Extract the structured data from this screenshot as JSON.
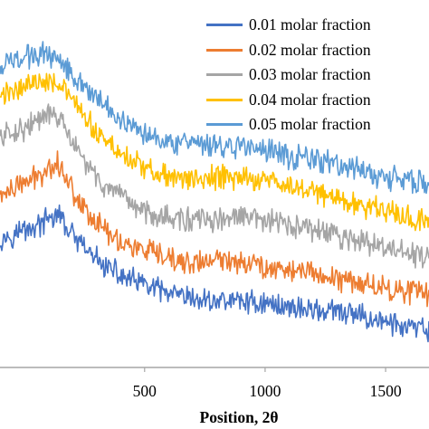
{
  "chart_data": {
    "type": "line",
    "title": "",
    "xlabel": "Position, 2θ",
    "ylabel": "",
    "xlim": [
      -100,
      1680
    ],
    "ylim": [
      0,
      10
    ],
    "xticks": [
      500,
      1000,
      1500
    ],
    "grid": false,
    "legend_position": "top-right",
    "series": [
      {
        "name": "0.01 molar fraction",
        "color": "#4472C4",
        "x": [
          -100,
          0,
          50,
          100,
          140,
          200,
          260,
          320,
          400,
          500,
          600,
          700,
          800,
          900,
          1000,
          1100,
          1200,
          1300,
          1400,
          1500,
          1600,
          1680
        ],
        "y": [
          4.0,
          4.3,
          4.4,
          4.6,
          4.8,
          4.1,
          3.6,
          3.2,
          2.8,
          2.5,
          2.2,
          2.0,
          2.0,
          2.0,
          1.9,
          1.8,
          1.7,
          1.6,
          1.5,
          1.3,
          1.1,
          1.0
        ]
      },
      {
        "name": "0.02 molar fraction",
        "color": "#ED7D31",
        "x": [
          -100,
          0,
          50,
          100,
          140,
          200,
          260,
          320,
          400,
          500,
          600,
          700,
          800,
          900,
          1000,
          1100,
          1200,
          1300,
          1400,
          1500,
          1600,
          1680
        ],
        "y": [
          5.4,
          5.8,
          6.0,
          6.3,
          6.5,
          5.6,
          4.9,
          4.4,
          3.9,
          3.6,
          3.3,
          3.2,
          3.3,
          3.3,
          3.1,
          3.0,
          2.9,
          2.7,
          2.6,
          2.4,
          2.3,
          2.2
        ]
      },
      {
        "name": "0.03 molar fraction",
        "color": "#A5A5A5",
        "x": [
          -100,
          0,
          50,
          100,
          140,
          200,
          260,
          320,
          400,
          500,
          600,
          700,
          800,
          900,
          1000,
          1100,
          1200,
          1300,
          1400,
          1500,
          1600,
          1680
        ],
        "y": [
          7.3,
          7.6,
          7.8,
          8.0,
          8.0,
          7.1,
          6.4,
          5.8,
          5.3,
          4.9,
          4.7,
          4.6,
          4.6,
          4.7,
          4.6,
          4.4,
          4.3,
          4.1,
          3.9,
          3.7,
          3.5,
          3.4
        ]
      },
      {
        "name": "0.04 molar fraction",
        "color": "#FFC000",
        "x": [
          -100,
          0,
          50,
          100,
          140,
          200,
          260,
          320,
          400,
          500,
          600,
          700,
          800,
          900,
          1000,
          1100,
          1200,
          1300,
          1400,
          1500,
          1600,
          1680
        ],
        "y": [
          8.6,
          9.0,
          9.1,
          9.2,
          9.1,
          8.5,
          7.8,
          7.3,
          6.8,
          6.3,
          6.0,
          5.9,
          6.0,
          6.0,
          5.9,
          5.7,
          5.6,
          5.3,
          5.1,
          4.9,
          4.7,
          4.6
        ]
      },
      {
        "name": "0.05 molar fraction",
        "color": "#5B9BD5",
        "x": [
          -100,
          0,
          50,
          100,
          140,
          200,
          260,
          320,
          400,
          500,
          600,
          700,
          800,
          900,
          1000,
          1100,
          1200,
          1300,
          1400,
          1500,
          1600,
          1680
        ],
        "y": [
          9.6,
          9.9,
          10.0,
          10.0,
          9.9,
          9.4,
          8.9,
          8.4,
          7.9,
          7.5,
          7.2,
          7.0,
          7.0,
          7.0,
          6.9,
          6.7,
          6.6,
          6.4,
          6.2,
          6.0,
          5.9,
          5.8
        ]
      }
    ]
  }
}
